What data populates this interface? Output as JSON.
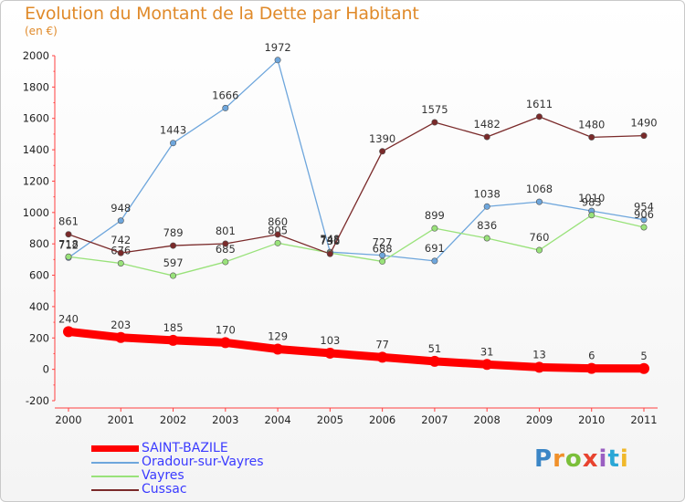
{
  "header": {
    "title": "Evolution du Montant de la Dette par Habitant",
    "subtitle": "(en €)"
  },
  "logo": {
    "text": "Proxiti",
    "colors": [
      "#3b86c6",
      "#f0902a",
      "#7bbf3a",
      "#e8432f",
      "#9a5fc2",
      "#2aa7d6",
      "#f0b82a"
    ]
  },
  "chart_data": {
    "type": "line",
    "categories": [
      "2000",
      "2001",
      "2002",
      "2003",
      "2004",
      "2005",
      "2006",
      "2007",
      "2008",
      "2009",
      "2010",
      "2011"
    ],
    "ylim": [
      -200,
      2000
    ],
    "yticks": [
      "-200",
      "0",
      "200",
      "400",
      "600",
      "800",
      "1000",
      "1200",
      "1400",
      "1600",
      "1800",
      "2000"
    ],
    "grid": false,
    "legend_position": "bottom-left",
    "series": [
      {
        "name": "SAINT-BAZILE",
        "color": "#ff0000",
        "values": [
          240,
          203,
          185,
          170,
          129,
          103,
          77,
          51,
          31,
          13,
          6,
          5
        ],
        "labels": [
          "240",
          "203",
          "185",
          "170",
          "129",
          "103",
          "77",
          "51",
          "31",
          "13",
          "6",
          "5"
        ]
      },
      {
        "name": "Oradour-sur-Vayres",
        "color": "#6ea6dc",
        "values": [
          712,
          948,
          1443,
          1666,
          1972,
          748,
          727,
          691,
          1038,
          1068,
          1010,
          954
        ],
        "labels": [
          "712",
          "948",
          "1443",
          "1666",
          "1972",
          "748",
          "727",
          "691",
          "1038",
          "1068",
          "1010",
          "954"
        ]
      },
      {
        "name": "Vayres",
        "color": "#99e27a",
        "values": [
          718,
          676,
          597,
          685,
          805,
          742,
          688,
          899,
          836,
          760,
          983,
          906
        ],
        "labels": [
          "718",
          "676",
          "597",
          "685",
          "805",
          "742",
          "688",
          "899",
          "836",
          "760",
          "983",
          "906"
        ]
      },
      {
        "name": "Cussac",
        "color": "#7a2a2a",
        "values": [
          861,
          742,
          789,
          801,
          860,
          736,
          1390,
          1575,
          1482,
          1611,
          1480,
          1490
        ],
        "labels": [
          "861",
          "742",
          "789",
          "801",
          "860",
          "736",
          "1390",
          "1575",
          "1482",
          "1611",
          "1480",
          "1490"
        ]
      }
    ]
  }
}
